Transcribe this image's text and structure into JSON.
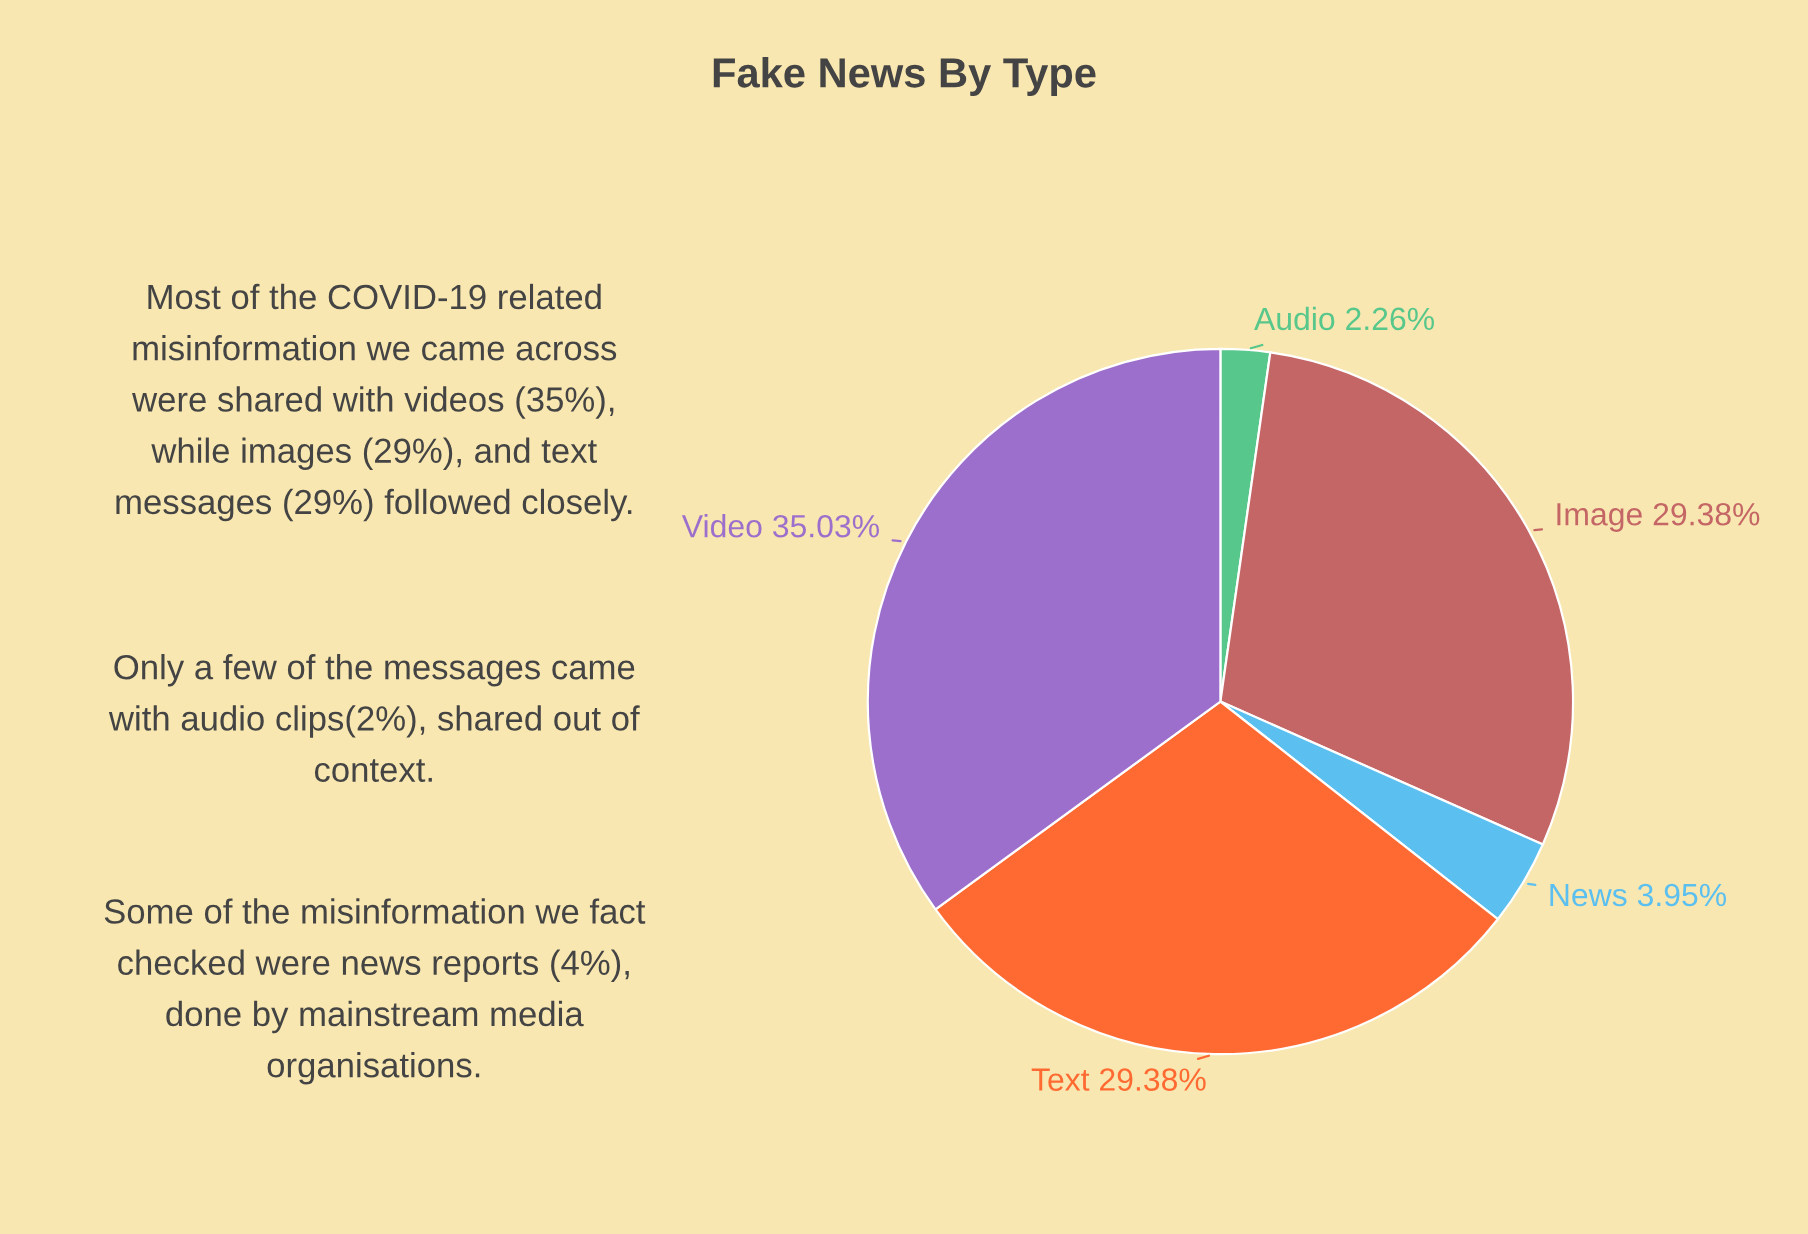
{
  "chart_data": [
    {
      "type": "other",
      "annotations": [
        "Most of the COVID-19 related\nmisinformation we came across\nwere shared with videos (35%),\nwhile images (29%), and text\nmessages (29%) followed closely.",
        "Only a few of the messages came\nwith audio clips(2%), shared out of\ncontext.",
        "Some of the misinformation we fact\nchecked were news reports (4%),\ndone by mainstream media\norganisations."
      ]
    },
    {
      "type": "pie",
      "title": "Fake News By Type",
      "categories": [
        "Audio",
        "Image",
        "News",
        "Text",
        "Video"
      ],
      "values": [
        2.26,
        29.38,
        3.95,
        29.38,
        35.03
      ],
      "value_labels": [
        "2.26%",
        "29.38%",
        "3.95%",
        "29.38%",
        "35.03%"
      ],
      "colors": [
        "#57c78b",
        "#c56666",
        "#5bbff0",
        "#ff6a33",
        "#9d6fcc"
      ],
      "legend": false
    }
  ]
}
